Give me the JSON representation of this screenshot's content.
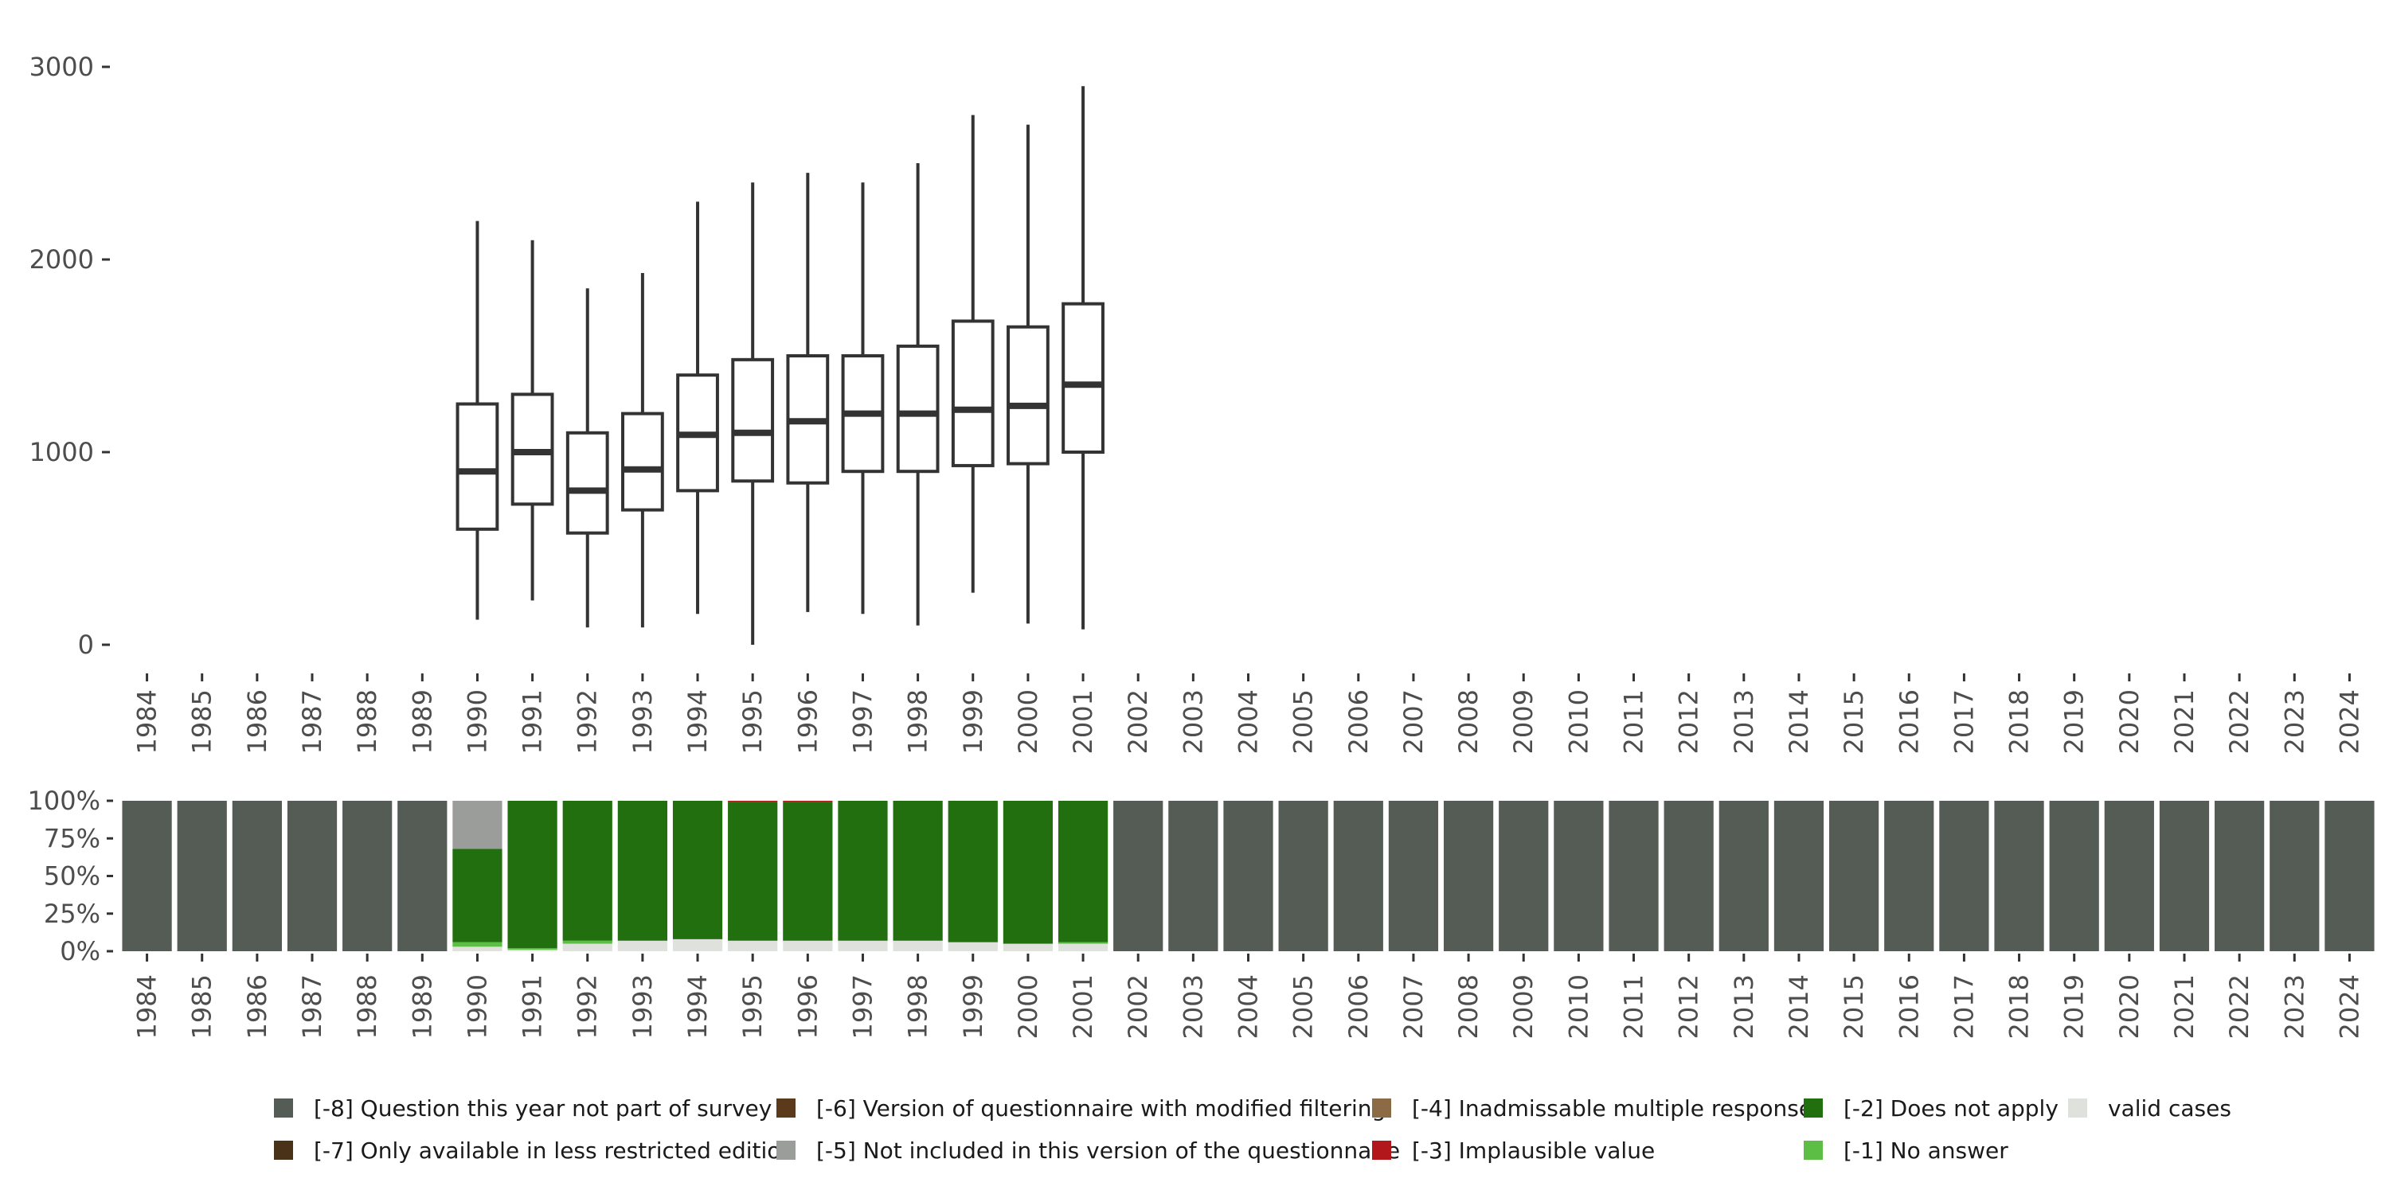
{
  "chart_data": [
    {
      "type": "boxplot",
      "title": "",
      "xlabel": "",
      "ylabel": "",
      "ylim": [
        0,
        3000
      ],
      "yticks": [
        0,
        1000,
        2000,
        3000
      ],
      "categories": [
        "1984",
        "1985",
        "1986",
        "1987",
        "1988",
        "1989",
        "1990",
        "1991",
        "1992",
        "1993",
        "1994",
        "1995",
        "1996",
        "1997",
        "1998",
        "1999",
        "2000",
        "2001",
        "2002",
        "2003",
        "2004",
        "2005",
        "2006",
        "2007",
        "2008",
        "2009",
        "2010",
        "2011",
        "2012",
        "2013",
        "2014",
        "2015",
        "2016",
        "2017",
        "2018",
        "2019",
        "2020",
        "2021",
        "2022",
        "2023",
        "2024"
      ],
      "boxes": [
        {
          "year": "1990",
          "whisker_low": 130,
          "q1": 600,
          "median": 900,
          "q3": 1250,
          "whisker_high": 2200
        },
        {
          "year": "1991",
          "whisker_low": 230,
          "q1": 730,
          "median": 1000,
          "q3": 1300,
          "whisker_high": 2100
        },
        {
          "year": "1992",
          "whisker_low": 90,
          "q1": 580,
          "median": 800,
          "q3": 1100,
          "whisker_high": 1850
        },
        {
          "year": "1993",
          "whisker_low": 90,
          "q1": 700,
          "median": 910,
          "q3": 1200,
          "whisker_high": 1930
        },
        {
          "year": "1994",
          "whisker_low": 160,
          "q1": 800,
          "median": 1090,
          "q3": 1400,
          "whisker_high": 2300
        },
        {
          "year": "1995",
          "whisker_low": 0,
          "q1": 850,
          "median": 1100,
          "q3": 1480,
          "whisker_high": 2400
        },
        {
          "year": "1996",
          "whisker_low": 170,
          "q1": 840,
          "median": 1160,
          "q3": 1500,
          "whisker_high": 2450
        },
        {
          "year": "1997",
          "whisker_low": 160,
          "q1": 900,
          "median": 1200,
          "q3": 1500,
          "whisker_high": 2400
        },
        {
          "year": "1998",
          "whisker_low": 100,
          "q1": 900,
          "median": 1200,
          "q3": 1550,
          "whisker_high": 2500
        },
        {
          "year": "1999",
          "whisker_low": 270,
          "q1": 930,
          "median": 1220,
          "q3": 1680,
          "whisker_high": 2750
        },
        {
          "year": "2000",
          "whisker_low": 110,
          "q1": 940,
          "median": 1240,
          "q3": 1650,
          "whisker_high": 2700
        },
        {
          "year": "2001",
          "whisker_low": 80,
          "q1": 1000,
          "median": 1350,
          "q3": 1770,
          "whisker_high": 2900
        }
      ]
    },
    {
      "type": "stacked-bar",
      "ylim": [
        0,
        100
      ],
      "yticks": [
        "0%",
        "25%",
        "50%",
        "75%",
        "100%"
      ],
      "stack_order": [
        "valid",
        "m1",
        "m2",
        "m3",
        "m4",
        "m5",
        "m6",
        "m7",
        "m8"
      ],
      "bars": [
        {
          "year": "1984",
          "m8": 100
        },
        {
          "year": "1985",
          "m8": 100
        },
        {
          "year": "1986",
          "m8": 100
        },
        {
          "year": "1987",
          "m8": 100
        },
        {
          "year": "1988",
          "m8": 100
        },
        {
          "year": "1989",
          "m8": 100
        },
        {
          "year": "1990",
          "valid": 3,
          "m1": 3,
          "m2": 62,
          "m5": 32
        },
        {
          "year": "1991",
          "valid": 1,
          "m1": 1,
          "m2": 98
        },
        {
          "year": "1992",
          "valid": 5,
          "m1": 2,
          "m2": 93
        },
        {
          "year": "1993",
          "valid": 7,
          "m2": 93
        },
        {
          "year": "1994",
          "valid": 8,
          "m2": 92
        },
        {
          "year": "1995",
          "valid": 7,
          "m2": 92,
          "m3": 1
        },
        {
          "year": "1996",
          "valid": 7,
          "m2": 92,
          "m3": 1
        },
        {
          "year": "1997",
          "valid": 7,
          "m2": 93
        },
        {
          "year": "1998",
          "valid": 7,
          "m2": 93
        },
        {
          "year": "1999",
          "valid": 6,
          "m2": 94
        },
        {
          "year": "2000",
          "valid": 5,
          "m2": 95
        },
        {
          "year": "2001",
          "valid": 5,
          "m1": 1,
          "m2": 94
        },
        {
          "year": "2002",
          "m8": 100
        },
        {
          "year": "2003",
          "m8": 100
        },
        {
          "year": "2004",
          "m8": 100
        },
        {
          "year": "2005",
          "m8": 100
        },
        {
          "year": "2006",
          "m8": 100
        },
        {
          "year": "2007",
          "m8": 100
        },
        {
          "year": "2008",
          "m8": 100
        },
        {
          "year": "2009",
          "m8": 100
        },
        {
          "year": "2010",
          "m8": 100
        },
        {
          "year": "2011",
          "m8": 100
        },
        {
          "year": "2012",
          "m8": 100
        },
        {
          "year": "2013",
          "m8": 100
        },
        {
          "year": "2014",
          "m8": 100
        },
        {
          "year": "2015",
          "m8": 100
        },
        {
          "year": "2016",
          "m8": 100
        },
        {
          "year": "2017",
          "m8": 100
        },
        {
          "year": "2018",
          "m8": 100
        },
        {
          "year": "2019",
          "m8": 100
        },
        {
          "year": "2020",
          "m8": 100
        },
        {
          "year": "2021",
          "m8": 100
        },
        {
          "year": "2022",
          "m8": 100
        },
        {
          "year": "2023",
          "m8": 100
        },
        {
          "year": "2024",
          "m8": 100
        }
      ]
    }
  ],
  "legend": {
    "placement": "bottom",
    "items": [
      {
        "key": "m8",
        "label": "[-8] Question this year not part of survey",
        "color": "#555b55"
      },
      {
        "key": "m7",
        "label": "[-7] Only available in less restricted edition",
        "color": "#4a3218"
      },
      {
        "key": "m6",
        "label": "[-6] Version of questionnaire with modified filtering",
        "color": "#5a3a1a"
      },
      {
        "key": "m5",
        "label": "[-5] Not included in this version of the questionnaire",
        "color": "#9b9d9a"
      },
      {
        "key": "m4",
        "label": "[-4] Inadmissable multiple response",
        "color": "#8b6a45"
      },
      {
        "key": "m3",
        "label": "[-3] Implausible value",
        "color": "#b2181b"
      },
      {
        "key": "m2",
        "label": "[-2] Does not apply",
        "color": "#216f0e"
      },
      {
        "key": "m1",
        "label": "[-1] No answer",
        "color": "#5cbe44"
      },
      {
        "key": "valid",
        "label": "valid cases",
        "color": "#dfe1dd"
      }
    ]
  }
}
